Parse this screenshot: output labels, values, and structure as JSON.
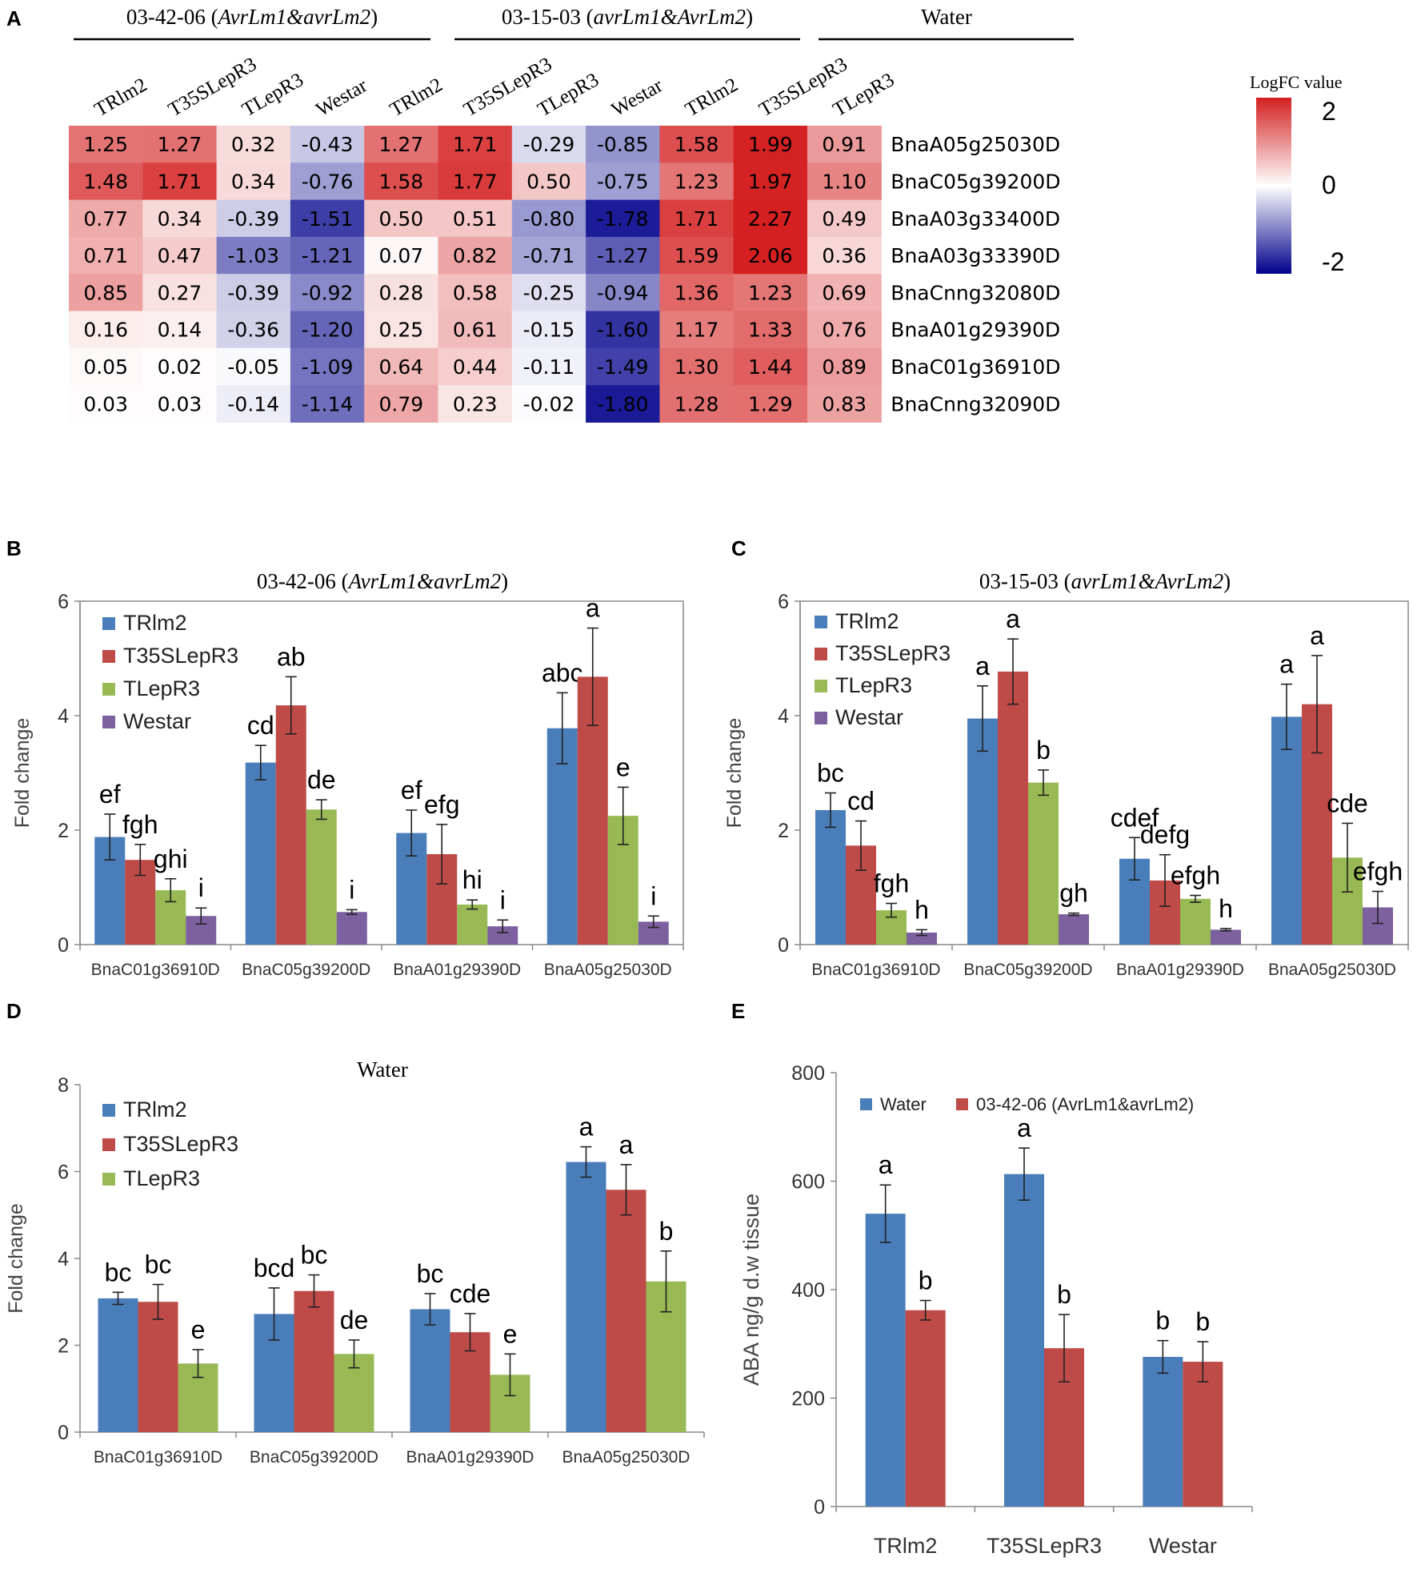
{
  "colors": {
    "blue": "#4A7EBB",
    "red": "#BE4B48",
    "green": "#98B954",
    "purple": "#7D60A0",
    "heat_low": "#00008B",
    "heat_mid": "#FFFFFF",
    "heat_high": "#D42020",
    "axis": "#888888",
    "text": "#000000"
  },
  "chart_data": [
    {
      "panel": "A",
      "type": "heatmap",
      "groups": [
        {
          "label": "03-42-06 (AvrLm1&avrLm2)",
          "plain": "03-42-06 (",
          "italic": "AvrLm1&avrLm2",
          "close": ")",
          "span": [
            0,
            4
          ]
        },
        {
          "label": "03-15-03 (avrLm1&AvrLm2)",
          "plain": "03-15-03 (",
          "italic": "avrLm1&AvrLm2",
          "close": ")",
          "span": [
            4,
            8
          ]
        },
        {
          "label": "Water",
          "plain": "Water",
          "italic": "",
          "close": "",
          "span": [
            8,
            11
          ]
        }
      ],
      "columns": [
        "TRlm2",
        "T35SLepR3",
        "TLepR3",
        "Westar",
        "TRlm2",
        "T35SLepR3",
        "TLepR3",
        "Westar",
        "TRlm2",
        "T35SLepR3",
        "TLepR3"
      ],
      "rows": [
        "BnaA05g25030D",
        "BnaC05g39200D",
        "BnaA03g33400D",
        "BnaA03g33390D",
        "BnaCnng32080D",
        "BnaA01g29390D",
        "BnaC01g36910D",
        "BnaCnng32090D"
      ],
      "values": [
        [
          "1.25",
          "1.27",
          "0.32",
          "-0.43",
          "1.27",
          "1.71",
          "-0.29",
          "-0.85",
          "1.58",
          "1.99",
          "0.91"
        ],
        [
          "1.48",
          "1.71",
          "0.34",
          "-0.76",
          "1.58",
          "1.77",
          "0.50",
          "-0.75",
          "1.23",
          "1.97",
          "1.10"
        ],
        [
          "0.77",
          "0.34",
          "-0.39",
          "-1.51",
          "0.50",
          "0.51",
          "-0.80",
          "-1.78",
          "1.71",
          "2.27",
          "0.49"
        ],
        [
          "0.71",
          "0.47",
          "-1.03",
          "-1.21",
          "0.07",
          "0.82",
          "-0.71",
          "-1.27",
          "1.59",
          "2.06",
          "0.36"
        ],
        [
          "0.85",
          "0.27",
          "-0.39",
          "-0.92",
          "0.28",
          "0.58",
          "-0.25",
          "-0.94",
          "1.36",
          "1.23",
          "0.69"
        ],
        [
          "0.16",
          "0.14",
          "-0.36",
          "-1.20",
          "0.25",
          "0.61",
          "-0.15",
          "-1.60",
          "1.17",
          "1.33",
          "0.76"
        ],
        [
          "0.05",
          "0.02",
          "-0.05",
          "-1.09",
          "0.64",
          "0.44",
          "-0.11",
          "-1.49",
          "1.30",
          "1.44",
          "0.89"
        ],
        [
          "0.03",
          "0.03",
          "-0.14",
          "-1.14",
          "0.79",
          "0.23",
          "-0.02",
          "-1.80",
          "1.28",
          "1.29",
          "0.83"
        ]
      ],
      "legend": {
        "title": "LogFC value",
        "ticks": [
          "2",
          "0",
          "-2"
        ],
        "range": [
          -2,
          2
        ]
      }
    },
    {
      "panel": "B",
      "type": "bar",
      "title": "03-42-06 (AvrLm1&avrLm2)",
      "title_plain": "03-42-06 (",
      "title_italic": "AvrLm1&avrLm2",
      "ylabel": "Fold change",
      "ylim": [
        0,
        6
      ],
      "yticks": [
        "0",
        "2",
        "4",
        "6"
      ],
      "categories": [
        "BnaC01g36910D",
        "BnaC05g39200D",
        "BnaA01g29390D",
        "BnaA05g25030D"
      ],
      "series": [
        {
          "name": "TRlm2",
          "color": "blue",
          "values": [
            1.88,
            3.18,
            1.95,
            3.78
          ],
          "errors": [
            0.4,
            0.3,
            0.4,
            0.62
          ],
          "letters": [
            "ef",
            "cd",
            "ef",
            "abc"
          ]
        },
        {
          "name": "T35SLepR3",
          "color": "red",
          "values": [
            1.48,
            4.18,
            1.58,
            4.68
          ],
          "errors": [
            0.27,
            0.5,
            0.52,
            0.85
          ],
          "letters": [
            "fgh",
            "ab",
            "efg",
            "a"
          ]
        },
        {
          "name": "TLepR3",
          "color": "green",
          "values": [
            0.95,
            2.36,
            0.7,
            2.25
          ],
          "errors": [
            0.2,
            0.17,
            0.08,
            0.5
          ],
          "letters": [
            "ghi",
            "de",
            "hi",
            "e"
          ]
        },
        {
          "name": "Westar",
          "color": "purple",
          "values": [
            0.5,
            0.57,
            0.32,
            0.4
          ],
          "errors": [
            0.14,
            0.04,
            0.11,
            0.1
          ],
          "letters": [
            "i",
            "i",
            "i",
            "i"
          ]
        }
      ]
    },
    {
      "panel": "C",
      "type": "bar",
      "title": "03-15-03 (avrLm1&AvrLm2)",
      "title_plain": "03-15-03 (",
      "title_italic": "avrLm1&AvrLm2",
      "ylabel": "Fold change",
      "ylim": [
        0,
        6
      ],
      "yticks": [
        "0",
        "2",
        "4",
        "6"
      ],
      "categories": [
        "BnaC01g36910D",
        "BnaC05g39200D",
        "BnaA01g29390D",
        "BnaA05g25030D"
      ],
      "series": [
        {
          "name": "TRlm2",
          "color": "blue",
          "values": [
            2.35,
            3.95,
            1.5,
            3.98
          ],
          "errors": [
            0.3,
            0.57,
            0.37,
            0.57
          ],
          "letters": [
            "bc",
            "a",
            "cdef",
            "a"
          ]
        },
        {
          "name": "T35SLepR3",
          "color": "red",
          "values": [
            1.73,
            4.77,
            1.12,
            4.2
          ],
          "errors": [
            0.43,
            0.57,
            0.45,
            0.85
          ],
          "letters": [
            "cd",
            "a",
            "defg",
            "a"
          ]
        },
        {
          "name": "TLepR3",
          "color": "green",
          "values": [
            0.6,
            2.83,
            0.8,
            1.52
          ],
          "errors": [
            0.12,
            0.22,
            0.06,
            0.6
          ],
          "letters": [
            "fgh",
            "b",
            "efgh",
            "cde"
          ]
        },
        {
          "name": "Westar",
          "color": "purple",
          "values": [
            0.21,
            0.53,
            0.26,
            0.65
          ],
          "errors": [
            0.05,
            0.02,
            0.02,
            0.28
          ],
          "letters": [
            "h",
            "gh",
            "h",
            "efgh"
          ]
        }
      ]
    },
    {
      "panel": "D",
      "type": "bar",
      "title": "Water",
      "title_plain": "Water",
      "title_italic": "",
      "ylabel": "Fold change",
      "ylim": [
        0,
        8
      ],
      "yticks": [
        "0",
        "2",
        "4",
        "6",
        "8"
      ],
      "categories": [
        "BnaC01g36910D",
        "BnaC05g39200D",
        "BnaA01g29390D",
        "BnaA05g25030D"
      ],
      "series": [
        {
          "name": "TRlm2",
          "color": "blue",
          "values": [
            3.08,
            2.72,
            2.83,
            6.22
          ],
          "errors": [
            0.14,
            0.6,
            0.36,
            0.35
          ],
          "letters": [
            "bc",
            "bcd",
            "bc",
            "a"
          ]
        },
        {
          "name": "T35SLepR3",
          "color": "red",
          "values": [
            3.0,
            3.25,
            2.3,
            5.58
          ],
          "errors": [
            0.4,
            0.37,
            0.43,
            0.58
          ],
          "letters": [
            "bc",
            "bc",
            "cde",
            "a"
          ]
        },
        {
          "name": "TLepR3",
          "color": "green",
          "values": [
            1.58,
            1.8,
            1.32,
            3.47
          ],
          "errors": [
            0.32,
            0.32,
            0.48,
            0.7
          ],
          "letters": [
            "e",
            "de",
            "e",
            "b"
          ]
        }
      ]
    },
    {
      "panel": "E",
      "type": "bar",
      "title": "",
      "ylabel": "ABA ng/g d.w tissue",
      "ylim": [
        0,
        800
      ],
      "yticks": [
        "0",
        "200",
        "400",
        "600",
        "800"
      ],
      "categories": [
        "TRlm2",
        "T35SLepR3",
        "Westar"
      ],
      "series": [
        {
          "name": "Water",
          "color": "blue",
          "values": [
            540,
            613,
            276
          ],
          "errors": [
            53,
            48,
            30
          ],
          "letters": [
            "a",
            "a",
            "b"
          ]
        },
        {
          "name": "03-42-06 (AvrLm1&avrLm2)",
          "color": "red",
          "values": [
            362,
            292,
            267
          ],
          "errors": [
            18,
            62,
            37
          ],
          "letters": [
            "b",
            "b",
            "b"
          ]
        }
      ]
    }
  ]
}
